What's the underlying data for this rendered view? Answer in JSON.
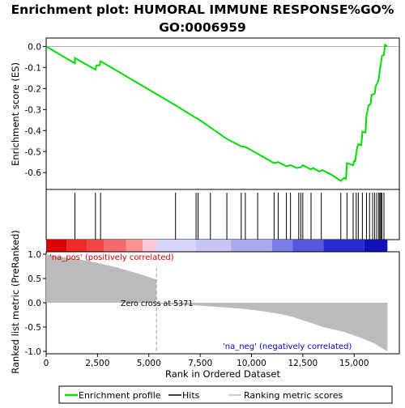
{
  "chart_data": {
    "type": "line",
    "title_line1": "Enrichment plot: HUMORAL IMMUNE RESPONSE%GO%",
    "title_line2": "GO:0006959",
    "es_panel": {
      "ylabel": "Enrichment score (ES)",
      "ylim": [
        -0.68,
        0.04
      ],
      "yticks": [
        0.0,
        -0.1,
        -0.2,
        -0.3,
        -0.4,
        -0.5,
        -0.6
      ],
      "ytick_labels": [
        "0.0",
        "-0.1",
        "-0.2",
        "-0.3",
        "-0.4",
        "-0.5",
        "-0.6"
      ],
      "line_color": "#00dd00",
      "points": [
        [
          0,
          0.0
        ],
        [
          1400,
          -0.08
        ],
        [
          1400,
          -0.055
        ],
        [
          2400,
          -0.11
        ],
        [
          2450,
          -0.09
        ],
        [
          2600,
          -0.09
        ],
        [
          2650,
          -0.07
        ],
        [
          5000,
          -0.205
        ],
        [
          6300,
          -0.28
        ],
        [
          7300,
          -0.34
        ],
        [
          7400,
          -0.345
        ],
        [
          8000,
          -0.385
        ],
        [
          8800,
          -0.44
        ],
        [
          9500,
          -0.475
        ],
        [
          9700,
          -0.478
        ],
        [
          10200,
          -0.505
        ],
        [
          11100,
          -0.555
        ],
        [
          11300,
          -0.55
        ],
        [
          11700,
          -0.57
        ],
        [
          11900,
          -0.565
        ],
        [
          12200,
          -0.578
        ],
        [
          12400,
          -0.575
        ],
        [
          12500,
          -0.565
        ],
        [
          12600,
          -0.57
        ],
        [
          12900,
          -0.585
        ],
        [
          13000,
          -0.578
        ],
        [
          13300,
          -0.595
        ],
        [
          13450,
          -0.588
        ],
        [
          13900,
          -0.61
        ],
        [
          14350,
          -0.64
        ],
        [
          14500,
          -0.625
        ],
        [
          14600,
          -0.63
        ],
        [
          14650,
          -0.555
        ],
        [
          14950,
          -0.565
        ],
        [
          15000,
          -0.545
        ],
        [
          15050,
          -0.545
        ],
        [
          15150,
          -0.48
        ],
        [
          15200,
          -0.465
        ],
        [
          15350,
          -0.47
        ],
        [
          15400,
          -0.405
        ],
        [
          15550,
          -0.41
        ],
        [
          15600,
          -0.33
        ],
        [
          15700,
          -0.28
        ],
        [
          15800,
          -0.275
        ],
        [
          15850,
          -0.23
        ],
        [
          16000,
          -0.225
        ],
        [
          16050,
          -0.19
        ],
        [
          16150,
          -0.17
        ],
        [
          16200,
          -0.15
        ],
        [
          16250,
          -0.11
        ],
        [
          16300,
          -0.085
        ],
        [
          16350,
          -0.045
        ],
        [
          16450,
          -0.04
        ],
        [
          16500,
          0.008
        ],
        [
          16620,
          0.0
        ]
      ]
    },
    "hits": [
      1400,
      2400,
      2650,
      6300,
      7300,
      7400,
      8000,
      8800,
      9500,
      9700,
      10300,
      11100,
      11300,
      11700,
      11900,
      12300,
      12400,
      12500,
      12900,
      13400,
      14350,
      14650,
      14950,
      15100,
      15200,
      15400,
      15600,
      15750,
      15900,
      16000,
      16100,
      16200,
      16250,
      16300,
      16350,
      16450
    ],
    "rank_bar": {
      "segments": [
        {
          "from": 0,
          "to": 1000,
          "color": "#dd0000"
        },
        {
          "from": 1000,
          "to": 2000,
          "color": "#ee2a2a"
        },
        {
          "from": 2000,
          "to": 2800,
          "color": "#f04646"
        },
        {
          "from": 2800,
          "to": 3900,
          "color": "#f46a6a"
        },
        {
          "from": 3900,
          "to": 4700,
          "color": "#f79393"
        },
        {
          "from": 4700,
          "to": 5371,
          "color": "#fbc8d8"
        },
        {
          "from": 5371,
          "to": 7300,
          "color": "#d6d6fa"
        },
        {
          "from": 7300,
          "to": 9000,
          "color": "#c5c5f6"
        },
        {
          "from": 9000,
          "to": 11000,
          "color": "#a9a9f0"
        },
        {
          "from": 11000,
          "to": 12000,
          "color": "#7d7de8"
        },
        {
          "from": 12000,
          "to": 13500,
          "color": "#5858de"
        },
        {
          "from": 13500,
          "to": 15500,
          "color": "#2a2ad0"
        },
        {
          "from": 15500,
          "to": 16620,
          "color": "#1010b8"
        }
      ]
    },
    "metric_panel": {
      "ylabel": "Ranked list metric (PreRanked)",
      "ylim": [
        -1.05,
        1.05
      ],
      "yticks": [
        1.0,
        0.5,
        0.0,
        -0.5,
        -1.0
      ],
      "ytick_labels": [
        "1.0",
        "0.5",
        "0.0",
        "-0.5",
        "-1.0"
      ],
      "profile": [
        [
          0,
          1.0
        ],
        [
          300,
          0.97
        ],
        [
          1000,
          0.93
        ],
        [
          1500,
          0.9
        ],
        [
          2000,
          0.86
        ],
        [
          2500,
          0.82
        ],
        [
          3000,
          0.77
        ],
        [
          3500,
          0.72
        ],
        [
          4000,
          0.66
        ],
        [
          4500,
          0.6
        ],
        [
          5000,
          0.53
        ],
        [
          5371,
          0.48
        ],
        [
          5372,
          -0.02
        ],
        [
          6500,
          -0.04
        ],
        [
          7500,
          -0.06
        ],
        [
          8500,
          -0.09
        ],
        [
          9500,
          -0.12
        ],
        [
          10500,
          -0.17
        ],
        [
          11500,
          -0.24
        ],
        [
          12000,
          -0.29
        ],
        [
          12500,
          -0.36
        ],
        [
          13000,
          -0.43
        ],
        [
          13500,
          -0.5
        ],
        [
          14000,
          -0.55
        ],
        [
          14500,
          -0.6
        ],
        [
          15000,
          -0.67
        ],
        [
          15500,
          -0.75
        ],
        [
          16000,
          -0.84
        ],
        [
          16300,
          -0.92
        ],
        [
          16620,
          -1.0
        ]
      ],
      "fill_color": "#bbbbbb",
      "pos_label": "'na_pos' (positively correlated)",
      "neg_label": "'na_neg' (negatively correlated)",
      "zero_cross_label": "Zero cross at 5371",
      "zero_cross": 5371
    },
    "x_axis": {
      "xlabel": "Rank in Ordered Dataset",
      "xlim": [
        0,
        17200
      ],
      "xticks": [
        0,
        2500,
        5000,
        7500,
        10000,
        12500,
        15000
      ],
      "xtick_labels": [
        "0",
        "2,500",
        "5,000",
        "7,500",
        "10,000",
        "12,500",
        "15,000"
      ]
    },
    "legend": {
      "placement": "bottom",
      "entries": [
        {
          "label": "Enrichment profile",
          "color": "#00dd00"
        },
        {
          "label": "Hits",
          "color": "#000000"
        },
        {
          "label": "Ranking metric scores",
          "color": "#bbbbbb"
        }
      ]
    }
  }
}
